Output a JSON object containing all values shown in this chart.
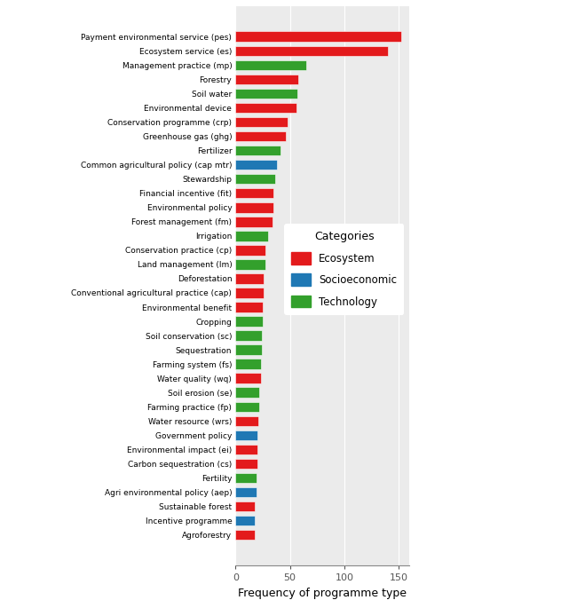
{
  "categories": [
    "Payment environmental service (pes)",
    "Ecosystem service (es)",
    "Management practice (mp)",
    "Forestry",
    "Soil water",
    "Environmental device",
    "Conservation programme (crp)",
    "Greenhouse gas (ghg)",
    "Fertilizer",
    "Common agricultural policy (cap mtr)",
    "Stewardship",
    "Financial incentive (fit)",
    "Environmental policy",
    "Forest management (fm)",
    "Irrigation",
    "Conservation practice (cp)",
    "Land management (lm)",
    "Deforestation",
    "Conventional agricultural practice (cap)",
    "Environmental benefit",
    "Cropping",
    "Soil conservation (sc)",
    "Sequestration",
    "Farming system (fs)",
    "Water quality (wq)",
    "Soil erosion (se)",
    "Farming practice (fp)",
    "Water resource (wrs)",
    "Government policy",
    "Environmental impact (ei)",
    "Carbon sequestration (cs)",
    "Fertility",
    "Agri environmental policy (aep)",
    "Sustainable forest",
    "Incentive programme",
    "Agroforestry"
  ],
  "values": [
    152,
    140,
    65,
    58,
    57,
    56,
    48,
    46,
    41,
    38,
    36,
    35,
    35,
    34,
    30,
    27,
    27,
    26,
    26,
    25,
    25,
    24,
    24,
    23,
    23,
    22,
    22,
    21,
    20,
    20,
    20,
    19,
    19,
    18,
    18,
    18
  ],
  "colors": [
    "#e31a1c",
    "#e31a1c",
    "#33a02c",
    "#e31a1c",
    "#33a02c",
    "#e31a1c",
    "#e31a1c",
    "#e31a1c",
    "#33a02c",
    "#1f78b4",
    "#33a02c",
    "#e31a1c",
    "#e31a1c",
    "#e31a1c",
    "#33a02c",
    "#e31a1c",
    "#33a02c",
    "#e31a1c",
    "#e31a1c",
    "#e31a1c",
    "#33a02c",
    "#33a02c",
    "#33a02c",
    "#33a02c",
    "#e31a1c",
    "#33a02c",
    "#33a02c",
    "#e31a1c",
    "#1f78b4",
    "#e31a1c",
    "#e31a1c",
    "#33a02c",
    "#1f78b4",
    "#e31a1c",
    "#1f78b4",
    "#e31a1c"
  ],
  "xlabel": "Frequency of programme type",
  "xlim": [
    0,
    160
  ],
  "xticks": [
    0,
    50,
    100,
    150
  ],
  "legend_labels": [
    "Ecosystem",
    "Socioeconomic",
    "Technology"
  ],
  "legend_colors": [
    "#e31a1c",
    "#1f78b4",
    "#33a02c"
  ],
  "legend_title": "Categories",
  "plot_bg_color": "#ebebeb",
  "bar_height": 0.72,
  "ytick_fontsize": 6.5,
  "xlabel_fontsize": 9,
  "xtick_fontsize": 8,
  "legend_fontsize": 8.5,
  "legend_title_fontsize": 9
}
